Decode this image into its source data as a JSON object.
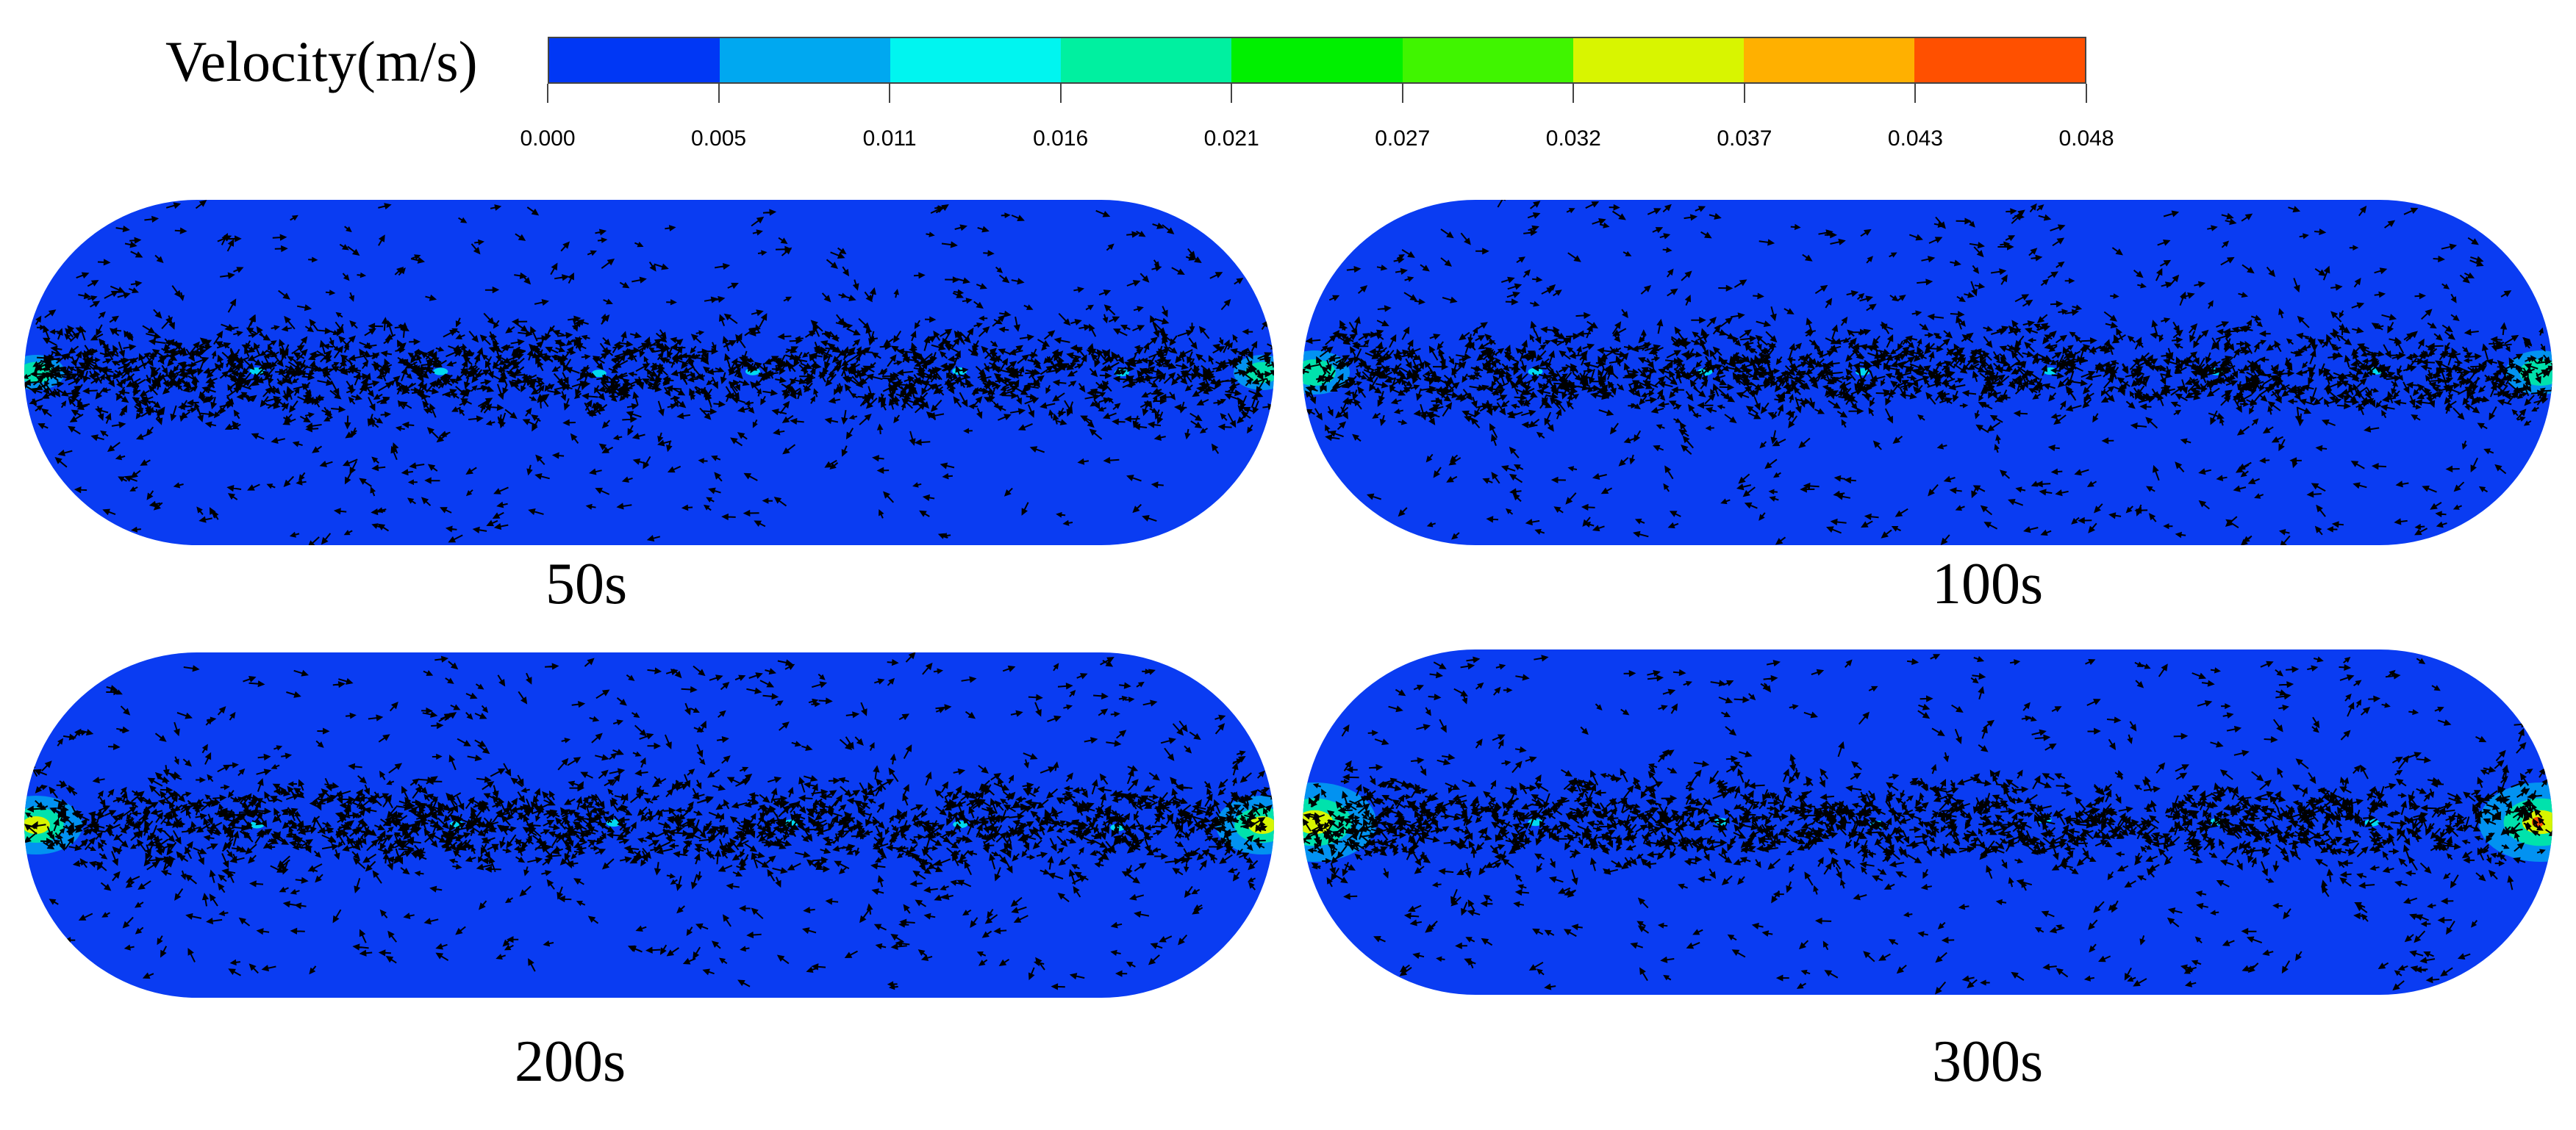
{
  "legend": {
    "title": "Velocity(m/s)",
    "ticks": [
      "0.000",
      "0.005",
      "0.011",
      "0.016",
      "0.021",
      "0.027",
      "0.032",
      "0.037",
      "0.043",
      "0.048"
    ],
    "colors": [
      "#0037f5",
      "#00a8f0",
      "#00f5f0",
      "#00f0a0",
      "#00f000",
      "#40f500",
      "#d8f500",
      "#ffb000",
      "#ff5000"
    ]
  },
  "background_color": "#0a3cf2",
  "arrow_color": "#000000",
  "panels": [
    {
      "label": "50s"
    },
    {
      "label": "100s"
    },
    {
      "label": "200s"
    },
    {
      "label": "300s"
    }
  ]
}
